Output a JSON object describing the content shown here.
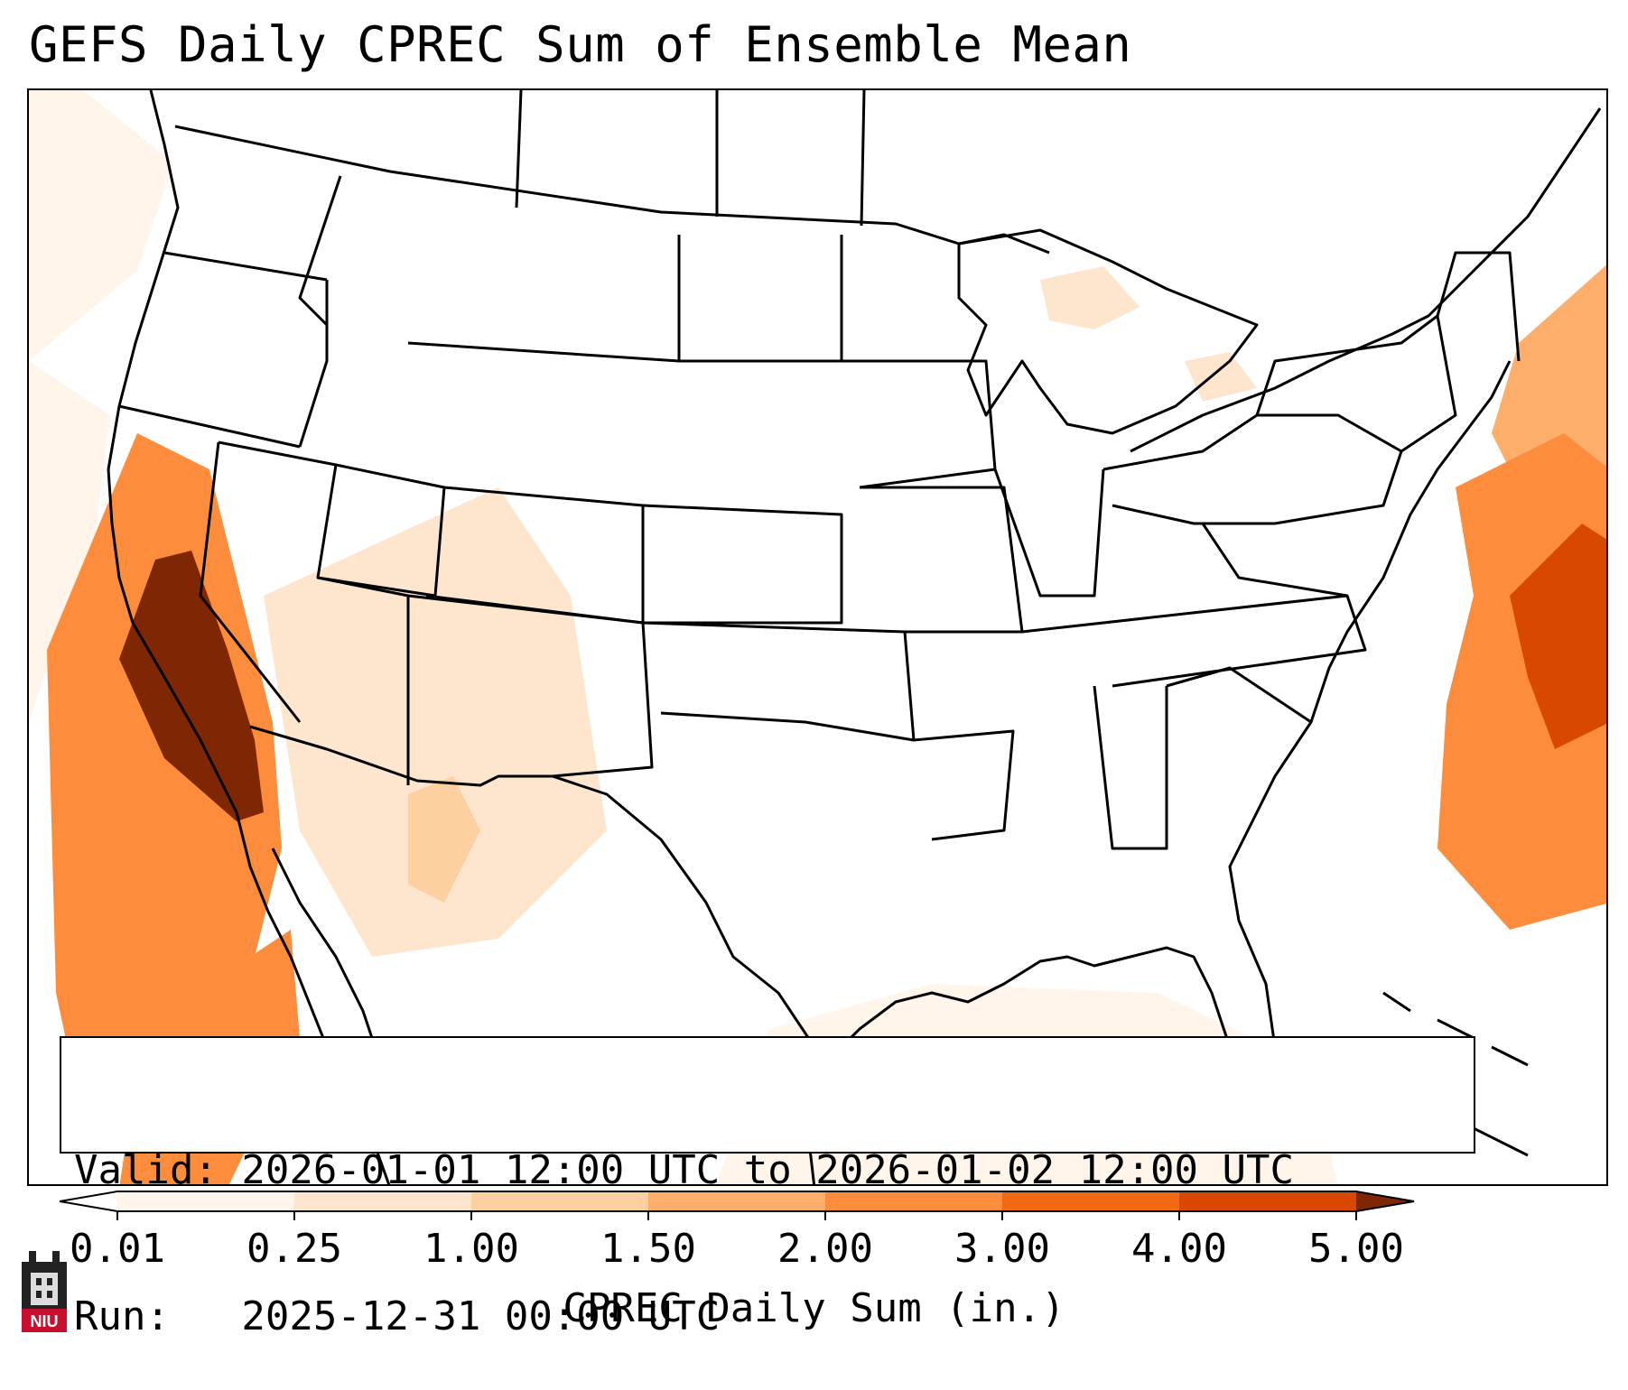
{
  "title": "GEFS Daily CPREC Sum of Ensemble Mean",
  "info": {
    "valid_line": "Valid: 2026-01-01 12:00 UTC to 2026-01-02 12:00 UTC",
    "run_line": "Run:   2025-12-31 00:00 UTC"
  },
  "colorbar": {
    "label": "CPREC Daily Sum (in.)",
    "ticks": [
      "0.01",
      "0.25",
      "1.00",
      "1.50",
      "2.00",
      "3.00",
      "4.00",
      "5.00"
    ],
    "colors": [
      "#fff5eb",
      "#fee6ce",
      "#fdd0a2",
      "#fdae6b",
      "#fd8d3c",
      "#f16913",
      "#d94801",
      "#8c2d04"
    ],
    "under_color": "#ffffff",
    "over_color": "#7f2704"
  },
  "logo": {
    "text": "NIU"
  },
  "precip_regions": [
    {
      "name": "pacific-offshore-light",
      "value": 0.2
    },
    {
      "name": "california-coast-band",
      "value": 2.5
    },
    {
      "name": "sierra-core",
      "value": 5.2
    },
    {
      "name": "baja-offshore-band",
      "value": 2.3
    },
    {
      "name": "atlantic-offshore-band",
      "value": 2.6
    },
    {
      "name": "atlantic-core",
      "value": 4.5
    },
    {
      "name": "new-england-coast",
      "value": 1.6
    },
    {
      "name": "southwest-light",
      "value": 0.3
    },
    {
      "name": "arizona-spots",
      "value": 1.2
    },
    {
      "name": "gulf-light",
      "value": 0.15
    },
    {
      "name": "great-lakes-spots",
      "value": 0.6
    }
  ]
}
